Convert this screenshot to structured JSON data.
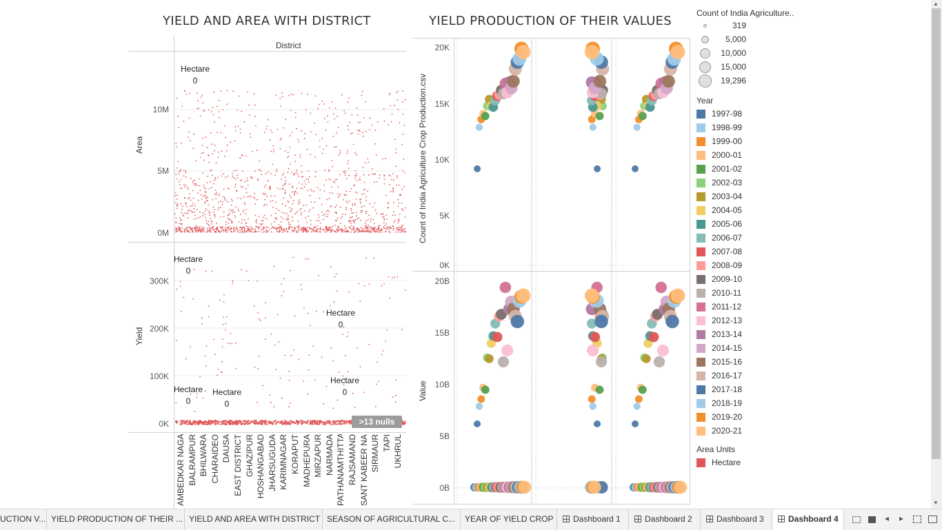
{
  "dashboard": {
    "left_title": "YIELD AND AREA WITH DISTRICT",
    "right_title": "YIELD PRODUCTION OF THEIR VALUES"
  },
  "left_chart": {
    "column_header": "District",
    "area_axis_label": "Area",
    "area_ticks": [
      "10M",
      "5M",
      "0M"
    ],
    "yield_axis_label": "Yield",
    "yield_ticks": [
      "300K",
      "200K",
      "100K",
      "0K"
    ],
    "annotation_label": "Hectare",
    "annotation_value": "0",
    "nulls_indicator": ">13 nulls",
    "districts": [
      "AMBEDKAR NAGAR",
      "BALRAMPUR",
      "BHILWARA",
      "CHARAIDEO",
      "DAUSA",
      "EAST DISTRICT",
      "GHAZIPUR",
      "HOSHANGABAD",
      "JHARSUGUDA",
      "KARIMNAGAR",
      "KORAPUT",
      "MADHEPURA",
      "MIRZAPUR",
      "NARMADA",
      "PATHANAMTHITTA",
      "RAJSAMAND",
      "SANT KABEER NAGAR",
      "SIRMAUR",
      "TAPI",
      "UKHRUL"
    ],
    "color": "#e15759"
  },
  "right_chart": {
    "top_axis_label": "Count of India Agriculture Crop Production.csv",
    "top_ticks": [
      "20K",
      "15K",
      "10K",
      "5K",
      "0K"
    ],
    "bottom_axis_label": "Value",
    "bottom_ticks": [
      "20B",
      "15B",
      "10B",
      "5B",
      "0B"
    ]
  },
  "legend": {
    "size_title": "Count of India Agriculture..",
    "size_values": [
      "319",
      "5,000",
      "10,000",
      "15,000",
      "19,296"
    ],
    "year_title": "Year",
    "years": [
      {
        "label": "1997-98",
        "color": "#4e79a7"
      },
      {
        "label": "1998-99",
        "color": "#a0cbe8"
      },
      {
        "label": "1999-00",
        "color": "#f28e2b"
      },
      {
        "label": "2000-01",
        "color": "#ffbe7d"
      },
      {
        "label": "2001-02",
        "color": "#59a14f"
      },
      {
        "label": "2002-03",
        "color": "#8cd17d"
      },
      {
        "label": "2003-04",
        "color": "#b6992d"
      },
      {
        "label": "2004-05",
        "color": "#f1ce63"
      },
      {
        "label": "2005-06",
        "color": "#499894"
      },
      {
        "label": "2006-07",
        "color": "#86bcb6"
      },
      {
        "label": "2007-08",
        "color": "#e15759"
      },
      {
        "label": "2008-09",
        "color": "#ff9d9a"
      },
      {
        "label": "2009-10",
        "color": "#79706e"
      },
      {
        "label": "2010-11",
        "color": "#bab0ac"
      },
      {
        "label": "2011-12",
        "color": "#d37295"
      },
      {
        "label": "2012-13",
        "color": "#fabfd2"
      },
      {
        "label": "2013-14",
        "color": "#b07aa1"
      },
      {
        "label": "2014-15",
        "color": "#d4a6c8"
      },
      {
        "label": "2015-16",
        "color": "#9d7660"
      },
      {
        "label": "2016-17",
        "color": "#d7b5a6"
      },
      {
        "label": "2017-18",
        "color": "#4e79a7"
      },
      {
        "label": "2018-19",
        "color": "#a0cbe8"
      },
      {
        "label": "2019-20",
        "color": "#f28e2b"
      },
      {
        "label": "2020-21",
        "color": "#ffbe7d"
      }
    ],
    "area_units_title": "Area Units",
    "area_units": [
      {
        "label": "Hectare",
        "color": "#e15759"
      }
    ]
  },
  "tabs": [
    {
      "label": "UCTION V..."
    },
    {
      "label": "YIELD PRODUCTION OF THEIR ..."
    },
    {
      "label": "YIELD AND AREA WITH DISTRICT"
    },
    {
      "label": "SEASON OF AGRICULTURAL C..."
    },
    {
      "label": "YEAR OF YIELD CROP"
    },
    {
      "label": "Dashboard 1"
    },
    {
      "label": "Dashboard 2"
    },
    {
      "label": "Dashboard 3"
    },
    {
      "label": "Dashboard 4"
    }
  ],
  "chart_data": [
    {
      "type": "scatter",
      "title": "YIELD AND AREA WITH DISTRICT",
      "xlabel": "District",
      "ylabel": "Area",
      "ylim": [
        0,
        15000000
      ],
      "series": [
        {
          "name": "Hectare"
        }
      ]
    },
    {
      "type": "scatter",
      "xlabel": "District",
      "ylabel": "Yield",
      "ylim": [
        0,
        360000
      ],
      "series": [
        {
          "name": "Hectare"
        }
      ]
    },
    {
      "type": "scatter",
      "title": "YIELD PRODUCTION OF THEIR VALUES",
      "ylabel": "Count of India Agriculture Crop Production.csv",
      "ylim": [
        0,
        20500
      ],
      "x": [
        "1997-98",
        "1998-99",
        "1999-00",
        "2000-01",
        "2001-02",
        "2002-03",
        "2003-04",
        "2004-05",
        "2005-06",
        "2006-07",
        "2007-08",
        "2008-09",
        "2009-10",
        "2010-11",
        "2011-12",
        "2012-13",
        "2013-14",
        "2014-15",
        "2015-16",
        "2016-17",
        "2017-18",
        "2018-19",
        "2019-20",
        "2020-21"
      ],
      "values": [
        8600,
        12300,
        13000,
        13500,
        13300,
        14200,
        14800,
        14200,
        14100,
        14700,
        15100,
        15200,
        15600,
        15300,
        16200,
        15400,
        16300,
        15800,
        16400,
        17500,
        18100,
        18400,
        19300,
        19000
      ]
    },
    {
      "type": "scatter",
      "ylabel": "Value",
      "ylim": [
        0,
        20500000000
      ],
      "x": [
        "1997-98",
        "1998-99",
        "1999-00",
        "2000-01",
        "2001-02",
        "2002-03",
        "2003-04",
        "2004-05",
        "2005-06",
        "2006-07",
        "2007-08",
        "2008-09",
        "2009-10",
        "2010-11",
        "2011-12",
        "2012-13",
        "2013-14",
        "2014-15",
        "2015-16",
        "2016-17",
        "2017-18",
        "2018-19",
        "2019-20",
        "2020-21"
      ],
      "values": [
        6200000000,
        7900000000,
        8600000000,
        9700000000,
        9500000000,
        12600000000,
        12500000000,
        14000000000,
        14700000000,
        15900000000,
        14600000000,
        16600000000,
        16800000000,
        12200000000,
        19400000000,
        13300000000,
        17300000000,
        18000000000,
        17300000000,
        16600000000,
        16100000000,
        18100000000,
        18500000000,
        18600000000
      ]
    }
  ]
}
